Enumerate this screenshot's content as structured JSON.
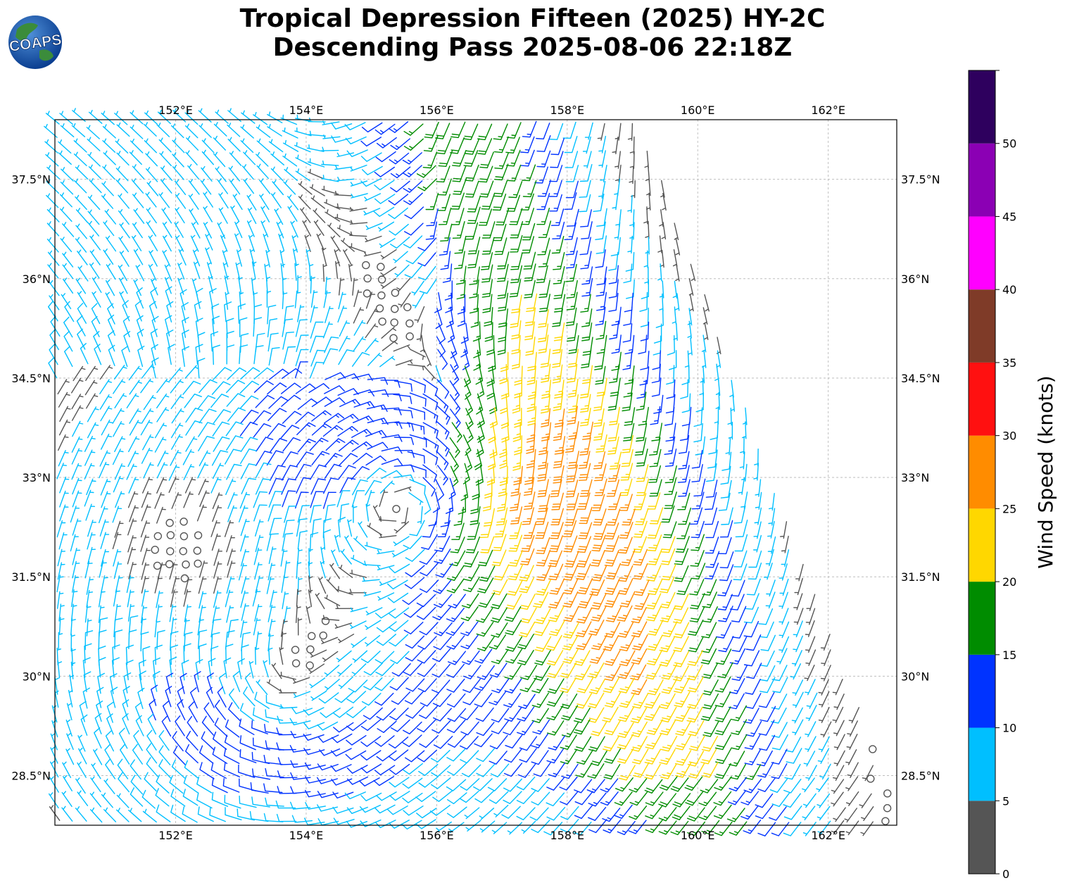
{
  "title": {
    "line1": "Tropical Depression Fifteen (2025) HY-2C",
    "line2": "Descending Pass 2025-08-06 22:18Z"
  },
  "logo": {
    "text": "COAPS"
  },
  "map": {
    "lon_range": [
      150.15,
      163.05
    ],
    "lat_range": [
      27.75,
      38.4
    ],
    "lon_ticks": [
      152,
      154,
      156,
      158,
      160,
      162
    ],
    "lat_ticks": [
      28.5,
      30,
      31.5,
      33,
      34.5,
      36,
      37.5
    ],
    "lon_tick_labels": [
      "152°E",
      "154°E",
      "156°E",
      "158°E",
      "160°E",
      "162°E"
    ],
    "lat_tick_labels": [
      "28.5°N",
      "30°N",
      "31.5°N",
      "33°N",
      "34.5°N",
      "36°N",
      "37.5°N"
    ],
    "grid": true
  },
  "colorbar": {
    "label": "Wind Speed (knots)",
    "bounds": [
      0,
      5,
      10,
      15,
      20,
      25,
      30,
      35,
      40,
      45,
      50,
      55
    ],
    "tick_labels": [
      "0",
      "5",
      "10",
      "15",
      "20",
      "25",
      "30",
      "35",
      "40",
      "45",
      "50"
    ],
    "colors": [
      "#555555",
      "#00bfff",
      "#0033ff",
      "#008c00",
      "#ffd700",
      "#ff8c00",
      "#ff1010",
      "#7f3b28",
      "#ff00ff",
      "#8b00b4",
      "#2e005e"
    ]
  },
  "wind_field": {
    "units": "knots",
    "lows": [
      {
        "lon": 155.6,
        "lat": 32.7
      },
      {
        "lon": 153.6,
        "lat": 29.7
      }
    ],
    "swath_east_edge": [
      [
        159.1,
        38.4
      ],
      [
        163.05,
        28.0
      ]
    ]
  }
}
